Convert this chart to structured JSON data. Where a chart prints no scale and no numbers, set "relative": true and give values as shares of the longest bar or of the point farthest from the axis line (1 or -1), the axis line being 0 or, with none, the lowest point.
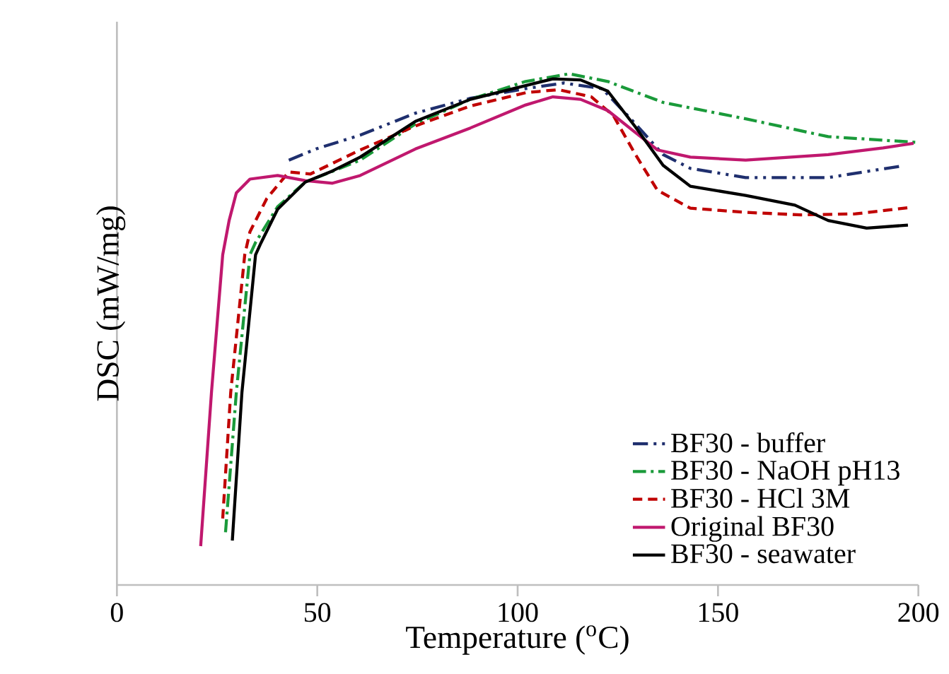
{
  "chart_data": {
    "type": "line",
    "xlabel": "Temperature ($^{o}$C)",
    "ylabel": "DSC (mW/mg)",
    "relative": true,
    "xlim": [
      0,
      200
    ],
    "xticks": [
      0,
      50,
      100,
      150,
      200
    ],
    "legend": "bottom right",
    "series": [
      {
        "name": "BF30 - buffer",
        "color": "#1f2f6e",
        "line_style": "dashdotdotted",
        "x": [
          42.9,
          49.7,
          60.7,
          74.5,
          88.2,
          102,
          111.5,
          121.1,
          129.4,
          136.3,
          143.1,
          156.9,
          177.5,
          195.3
        ],
        "values": [
          0.831,
          0.853,
          0.88,
          0.923,
          0.952,
          0.971,
          0.982,
          0.971,
          0.902,
          0.842,
          0.815,
          0.797,
          0.797,
          0.819
        ]
      },
      {
        "name": "BF30 - NaOH pH13",
        "color": "#1a9a3a",
        "line_style": "dashdotted",
        "x": [
          27.1,
          29.8,
          33.2,
          34.6,
          40.1,
          47,
          60.7,
          74.5,
          88.2,
          102,
          112.9,
          122.5,
          136.3,
          156.9,
          177.5,
          199.5
        ],
        "values": [
          0.103,
          0.377,
          0.646,
          0.67,
          0.74,
          0.788,
          0.831,
          0.902,
          0.95,
          0.985,
          1.0,
          0.985,
          0.944,
          0.912,
          0.877,
          0.866
        ]
      },
      {
        "name": "BF30 - HCl 3M",
        "color": "#c00000",
        "line_style": "dashed",
        "x": [
          26.4,
          28.4,
          31.9,
          33.2,
          37.4,
          42.9,
          48.3,
          60.7,
          74.5,
          88.2,
          102,
          110.2,
          118.4,
          123.9,
          129.4,
          134.9,
          143.1,
          156.9,
          170.6,
          184.3,
          197.4
        ],
        "values": [
          0.13,
          0.377,
          0.646,
          0.691,
          0.756,
          0.808,
          0.804,
          0.851,
          0.898,
          0.937,
          0.963,
          0.969,
          0.955,
          0.918,
          0.842,
          0.772,
          0.737,
          0.729,
          0.724,
          0.726,
          0.738
        ]
      },
      {
        "name": "Original BF30",
        "color": "#c0186e",
        "line_style": "solid",
        "x": [
          20.9,
          23.6,
          26.4,
          28,
          29.8,
          33.2,
          40.1,
          47,
          53.8,
          60.7,
          74.5,
          88.2,
          102,
          108.8,
          115.7,
          122.5,
          129.4,
          134.9,
          143.1,
          156.9,
          177.5,
          191.2,
          198.8
        ],
        "values": [
          0.076,
          0.377,
          0.646,
          0.713,
          0.767,
          0.794,
          0.801,
          0.791,
          0.786,
          0.801,
          0.853,
          0.894,
          0.939,
          0.955,
          0.95,
          0.928,
          0.885,
          0.851,
          0.837,
          0.831,
          0.842,
          0.855,
          0.864
        ]
      },
      {
        "name": "BF30 - seawater",
        "color": "#000000",
        "line_style": "solid",
        "x": [
          28.8,
          31.2,
          34.6,
          36,
          40.1,
          47,
          53.8,
          60.7,
          74.5,
          88.2,
          102,
          108.8,
          115.7,
          122.5,
          129.4,
          136.3,
          143.1,
          156.9,
          169.2,
          177.5,
          187.1,
          197.4
        ],
        "values": [
          0.087,
          0.377,
          0.646,
          0.67,
          0.735,
          0.788,
          0.81,
          0.837,
          0.907,
          0.95,
          0.977,
          0.99,
          0.988,
          0.966,
          0.896,
          0.821,
          0.78,
          0.762,
          0.743,
          0.713,
          0.698,
          0.704
        ]
      }
    ]
  }
}
